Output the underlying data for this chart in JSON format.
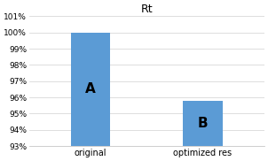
{
  "title": "Rt",
  "categories": [
    "original",
    "optimized res"
  ],
  "values": [
    100.0,
    95.8
  ],
  "labels": [
    "A",
    "B"
  ],
  "bar_color": "#5B9BD5",
  "ylim": [
    93,
    101
  ],
  "yticks": [
    93,
    94,
    95,
    96,
    97,
    98,
    99,
    100,
    101
  ],
  "ytick_labels": [
    "93%",
    "94%",
    "95%",
    "96%",
    "97%",
    "98%",
    "99%",
    "100%",
    "101%"
  ],
  "background_color": "#ffffff",
  "grid_color": "#d0d0d0",
  "title_fontsize": 9,
  "label_fontsize": 11,
  "tick_fontsize": 6.5,
  "xlabel_fontsize": 7,
  "bar_width": 0.35,
  "xlim": [
    -0.55,
    1.55
  ],
  "figsize": [
    3.02,
    1.82
  ],
  "dpi": 100
}
